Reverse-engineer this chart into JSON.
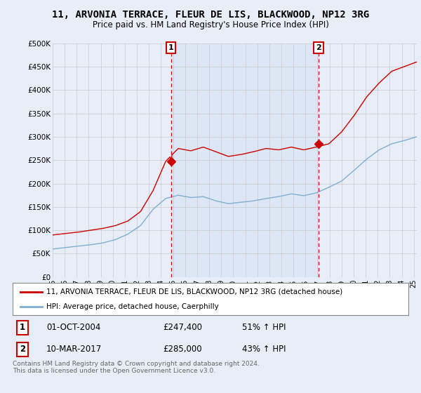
{
  "title": "11, ARVONIA TERRACE, FLEUR DE LIS, BLACKWOOD, NP12 3RG",
  "subtitle": "Price paid vs. HM Land Registry's House Price Index (HPI)",
  "bg_color": "#e8edf7",
  "plot_bg_color": "#e8edf7",
  "shaded_color": "#dce6f5",
  "red_color": "#cc0000",
  "blue_color": "#7fafd4",
  "marker1_date_idx": 118,
  "marker2_date_idx": 265,
  "marker1_date_str": "01-OCT-2004",
  "marker1_price": "£247,400",
  "marker1_hpi": "51% ↑ HPI",
  "marker2_date_str": "10-MAR-2017",
  "marker2_price": "£285,000",
  "marker2_hpi": "43% ↑ HPI",
  "ylabel_ticks": [
    "£0",
    "£50K",
    "£100K",
    "£150K",
    "£200K",
    "£250K",
    "£300K",
    "£350K",
    "£400K",
    "£450K",
    "£500K"
  ],
  "ytick_values": [
    0,
    50000,
    100000,
    150000,
    200000,
    250000,
    300000,
    350000,
    400000,
    450000,
    500000
  ],
  "legend_line1": "11, ARVONIA TERRACE, FLEUR DE LIS, BLACKWOOD, NP12 3RG (detached house)",
  "legend_line2": "HPI: Average price, detached house, Caerphilly",
  "footnote": "Contains HM Land Registry data © Crown copyright and database right 2024.\nThis data is licensed under the Open Government Licence v3.0.",
  "n_months": 364,
  "year_start": 1995,
  "red_control": [
    90000,
    93000,
    96000,
    100000,
    104000,
    110000,
    120000,
    140000,
    185000,
    247400,
    275000,
    270000,
    278000,
    268000,
    258000,
    262000,
    268000,
    275000,
    272000,
    278000,
    272000,
    278000,
    285000,
    310000,
    345000,
    385000,
    415000,
    440000,
    450000,
    460000
  ],
  "blue_control": [
    60000,
    63000,
    66000,
    69000,
    73000,
    80000,
    92000,
    110000,
    145000,
    168000,
    175000,
    170000,
    172000,
    163000,
    157000,
    160000,
    163000,
    168000,
    172000,
    178000,
    174000,
    180000,
    192000,
    205000,
    228000,
    252000,
    272000,
    285000,
    292000,
    300000
  ]
}
